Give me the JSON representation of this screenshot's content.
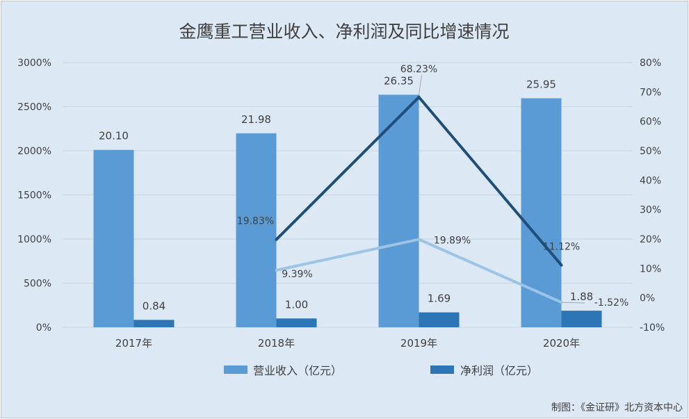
{
  "chart_data": {
    "type": "bar",
    "title": "金鹰重工营业收入、净利润及同比增速情况",
    "categories": [
      "2017年",
      "2018年",
      "2019年",
      "2020年"
    ],
    "series": [
      {
        "name": "营业收入（亿元）",
        "type": "bar",
        "axis": "left",
        "color": "#5b9bd5",
        "values": [
          20.1,
          21.98,
          26.35,
          25.95
        ],
        "labels": [
          "20.10",
          "21.98",
          "26.35",
          "25.95"
        ]
      },
      {
        "name": "净利润（亿元）",
        "type": "bar",
        "axis": "left",
        "color": "#2e75b6",
        "values": [
          0.84,
          1.0,
          1.69,
          1.88
        ],
        "labels": [
          "0.84",
          "1.00",
          "1.69",
          "1.88"
        ]
      },
      {
        "type": "line",
        "axis": "right",
        "color": "#1f4e79",
        "values": [
          null,
          19.83,
          68.23,
          11.12
        ],
        "labels": [
          "",
          "19.83%",
          "68.23%",
          "11.12%"
        ]
      },
      {
        "type": "line",
        "axis": "right",
        "color": "#9dc3e6",
        "values": [
          null,
          9.39,
          19.89,
          -1.52
        ],
        "labels": [
          "",
          "9.39%",
          "19.89%",
          "-1.52%"
        ]
      }
    ],
    "bar_scale_note_hidden": true,
    "left_axis": {
      "ticks": [
        "0%",
        "500%",
        "1000%",
        "1500%",
        "2000%",
        "2500%",
        "3000%"
      ],
      "ylim": [
        0,
        3000
      ]
    },
    "right_axis": {
      "ticks": [
        "-10%",
        "0%",
        "10%",
        "20%",
        "30%",
        "40%",
        "50%",
        "60%",
        "70%",
        "80%"
      ],
      "ylim": [
        -10,
        80
      ]
    },
    "grid": true,
    "legend_position": "bottom"
  },
  "caption": "制图：《金证研》北方资本中心"
}
